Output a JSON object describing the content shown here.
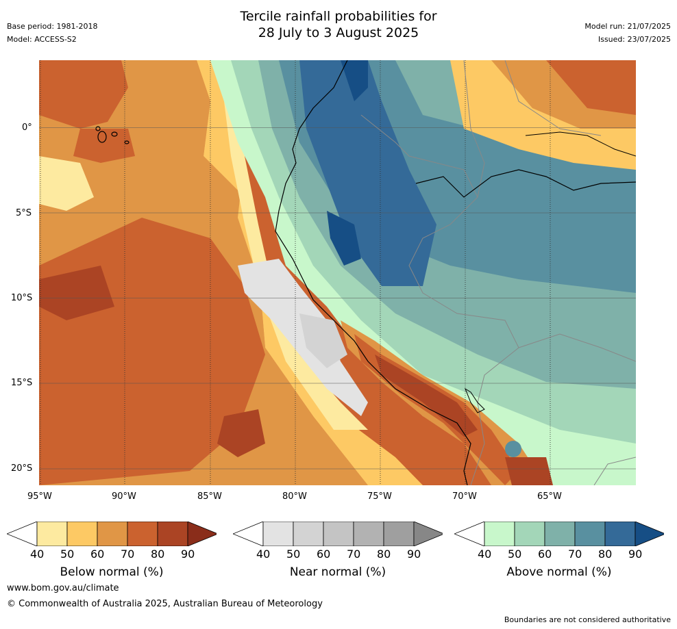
{
  "header": {
    "title_line1": "Tercile rainfall probabilities for",
    "title_line2": "28 July to 3 August 2025",
    "base_period": "Base period: 1981-2018",
    "model": "Model: ACCESS-S2",
    "model_run": "Model run: 21/07/2025",
    "issued": "Issued: 23/07/2025"
  },
  "map": {
    "lat_labels": [
      "0°",
      "5°S",
      "10°S",
      "15°S",
      "20°S"
    ],
    "lon_labels": [
      "95°W",
      "90°W",
      "85°W",
      "80°W",
      "75°W",
      "70°W",
      "65°W"
    ]
  },
  "legends": [
    {
      "title": "Below normal (%)",
      "ticks": [
        "40",
        "50",
        "60",
        "70",
        "80",
        "90"
      ],
      "colors": [
        "#ffffff",
        "#fdeaa0",
        "#fdc964",
        "#e09646",
        "#cb622f",
        "#ab4424",
        "#8a2d1a"
      ]
    },
    {
      "title": "Near normal (%)",
      "ticks": [
        "40",
        "50",
        "60",
        "70",
        "80",
        "90"
      ],
      "colors": [
        "#ffffff",
        "#e3e3e3",
        "#d3d3d3",
        "#c4c4c4",
        "#b2b2b2",
        "#9f9f9f",
        "#878787"
      ]
    },
    {
      "title": "Above normal (%)",
      "ticks": [
        "40",
        "50",
        "60",
        "70",
        "80",
        "90"
      ],
      "colors": [
        "#ffffff",
        "#c8f7cb",
        "#a3d6b8",
        "#7fb1a9",
        "#5990a0",
        "#346a98",
        "#164e85"
      ]
    }
  ],
  "footer": {
    "website": "www.bom.gov.au/climate",
    "copyright": "© Commonwealth of Australia 2025, Australian Bureau of Meteorology",
    "disclaimer": "Boundaries are not considered authoritative"
  }
}
